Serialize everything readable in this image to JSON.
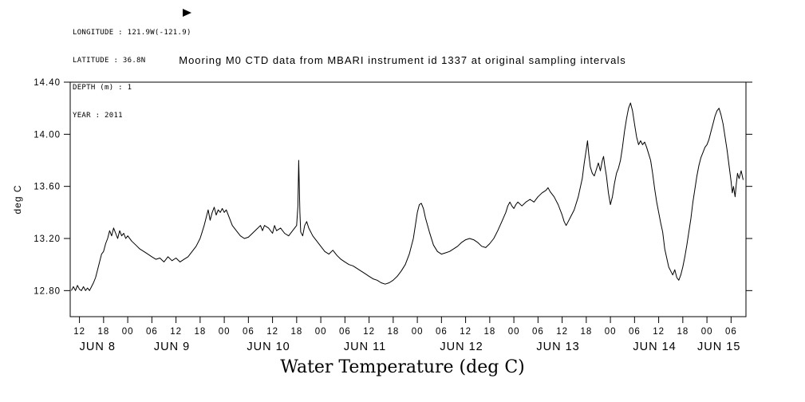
{
  "metadata": {
    "longitude": "LONGITUDE : 121.9W(-121.9)",
    "latitude": "LATITUDE : 36.8N",
    "depth": "DEPTH (m) : 1",
    "year": "YEAR : 2011"
  },
  "icons": {
    "cursor": "right-pointing-black-arrow"
  },
  "colors": {
    "foreground": "#000000",
    "background": "#ffffff"
  },
  "chart_data": {
    "type": "line",
    "title": "Mooring M0 CTD data from MBARI instrument id 1337 at original sampling intervals",
    "ylabel": "deg C",
    "xlabel": "Water Temperature (deg C)",
    "grid": false,
    "legend": "none",
    "line_color": "#000000",
    "background": "#ffffff",
    "ylim": [
      12.6,
      14.4
    ],
    "yticks": [
      {
        "value": 12.8,
        "label": "12.80"
      },
      {
        "value": 13.2,
        "label": "13.20"
      },
      {
        "value": 13.6,
        "label": "13.60"
      },
      {
        "value": 14.0,
        "label": "14.00"
      },
      {
        "value": 14.4,
        "label": "14.40"
      }
    ],
    "x_unit": "hours since JUN 8 2011 00:00",
    "xlim": [
      9.7,
      177.7
    ],
    "xticks": [
      {
        "hour": 12,
        "label": "12"
      },
      {
        "hour": 18,
        "label": "18"
      },
      {
        "hour": 24,
        "label": "00"
      },
      {
        "hour": 30,
        "label": "06"
      },
      {
        "hour": 36,
        "label": "12"
      },
      {
        "hour": 42,
        "label": "18"
      },
      {
        "hour": 48,
        "label": "00"
      },
      {
        "hour": 54,
        "label": "06"
      },
      {
        "hour": 60,
        "label": "12"
      },
      {
        "hour": 66,
        "label": "18"
      },
      {
        "hour": 72,
        "label": "00"
      },
      {
        "hour": 78,
        "label": "06"
      },
      {
        "hour": 84,
        "label": "12"
      },
      {
        "hour": 90,
        "label": "18"
      },
      {
        "hour": 96,
        "label": "00"
      },
      {
        "hour": 102,
        "label": "06"
      },
      {
        "hour": 108,
        "label": "12"
      },
      {
        "hour": 114,
        "label": "18"
      },
      {
        "hour": 120,
        "label": "00"
      },
      {
        "hour": 126,
        "label": "06"
      },
      {
        "hour": 132,
        "label": "12"
      },
      {
        "hour": 138,
        "label": "18"
      },
      {
        "hour": 144,
        "label": "00"
      },
      {
        "hour": 150,
        "label": "06"
      },
      {
        "hour": 156,
        "label": "12"
      },
      {
        "hour": 162,
        "label": "18"
      },
      {
        "hour": 168,
        "label": "00"
      },
      {
        "hour": 174,
        "label": "06"
      }
    ],
    "day_labels": [
      {
        "hour": 16.5,
        "label": "JUN 8"
      },
      {
        "hour": 35,
        "label": "JUN 9"
      },
      {
        "hour": 59,
        "label": "JUN 10"
      },
      {
        "hour": 83,
        "label": "JUN 11"
      },
      {
        "hour": 107,
        "label": "JUN 12"
      },
      {
        "hour": 131,
        "label": "JUN 13"
      },
      {
        "hour": 155,
        "label": "JUN 14"
      },
      {
        "hour": 171,
        "label": "JUN 15"
      }
    ],
    "series": [
      {
        "name": "water_temperature_deg_c",
        "t": [
          10,
          10.5,
          11,
          11.5,
          12,
          12.5,
          13,
          13.5,
          14,
          14.5,
          15,
          15.5,
          16,
          16.5,
          17,
          17.5,
          18,
          18.5,
          19,
          19.5,
          20,
          20.5,
          21,
          21.5,
          22,
          22.5,
          23,
          23.5,
          24,
          25,
          26,
          27,
          28,
          29,
          30,
          31,
          32,
          33,
          34,
          35,
          36,
          37,
          38,
          39,
          40,
          41,
          42,
          42.5,
          43,
          43.5,
          44,
          44.5,
          45,
          45.5,
          46,
          46.5,
          47,
          47.5,
          48,
          48.5,
          49,
          50,
          51,
          52,
          53,
          54,
          55,
          56,
          57,
          57.5,
          58,
          59,
          60,
          60.5,
          61,
          62,
          63,
          64,
          65,
          66,
          66.3,
          66.5,
          66.8,
          67,
          67.5,
          68,
          68.5,
          69,
          70,
          71,
          72,
          73,
          74,
          75,
          76,
          77,
          78,
          79,
          80,
          81,
          82,
          83,
          84,
          85,
          86,
          87,
          88,
          89,
          90,
          91,
          92,
          93,
          94,
          95,
          95.5,
          96,
          96.5,
          97,
          97.5,
          98,
          99,
          100,
          101,
          102,
          103,
          104,
          105,
          106,
          107,
          108,
          109,
          110,
          111,
          112,
          113,
          114,
          115,
          116,
          117,
          118,
          118.5,
          119,
          119.5,
          120,
          120.5,
          121,
          122,
          123,
          124,
          125,
          126,
          127,
          128,
          128.5,
          129,
          130,
          131,
          132,
          132.5,
          133,
          133.5,
          134,
          135,
          136,
          137,
          137.5,
          138,
          138.3,
          138.6,
          139,
          139.5,
          140,
          140.5,
          141,
          141.5,
          142,
          142.3,
          142.6,
          143,
          143.5,
          144,
          144.5,
          145,
          145.5,
          146,
          146.5,
          147,
          147.5,
          148,
          148.5,
          149,
          149.5,
          150,
          150.5,
          151,
          151.5,
          152,
          152.5,
          153,
          153.5,
          154,
          154.5,
          155,
          155.5,
          156,
          156.5,
          157,
          157.5,
          158,
          158.5,
          159,
          159.5,
          160,
          160.5,
          161,
          161.5,
          162,
          162.5,
          163,
          163.5,
          164,
          164.5,
          165,
          165.5,
          166,
          166.5,
          167,
          167.5,
          168,
          168.5,
          169,
          169.5,
          170,
          170.5,
          171,
          171.5,
          172,
          172.5,
          173,
          173.5,
          174,
          174.3,
          174.6,
          175,
          175.3,
          175.6,
          176,
          176.5,
          177
        ],
        "v": [
          12.8,
          12.83,
          12.8,
          12.84,
          12.81,
          12.8,
          12.83,
          12.8,
          12.82,
          12.8,
          12.83,
          12.86,
          12.9,
          12.96,
          13.02,
          13.08,
          13.1,
          13.16,
          13.2,
          13.26,
          13.22,
          13.28,
          13.24,
          13.2,
          13.26,
          13.22,
          13.24,
          13.2,
          13.22,
          13.18,
          13.15,
          13.12,
          13.1,
          13.08,
          13.06,
          13.04,
          13.05,
          13.02,
          13.06,
          13.03,
          13.05,
          13.02,
          13.04,
          13.06,
          13.1,
          13.14,
          13.2,
          13.25,
          13.3,
          13.36,
          13.42,
          13.34,
          13.4,
          13.44,
          13.38,
          13.42,
          13.4,
          13.43,
          13.4,
          13.42,
          13.38,
          13.3,
          13.26,
          13.22,
          13.2,
          13.21,
          13.24,
          13.27,
          13.3,
          13.26,
          13.3,
          13.28,
          13.24,
          13.3,
          13.26,
          13.28,
          13.24,
          13.22,
          13.26,
          13.3,
          13.45,
          13.8,
          13.4,
          13.25,
          13.22,
          13.3,
          13.33,
          13.28,
          13.22,
          13.18,
          13.14,
          13.1,
          13.08,
          13.11,
          13.07,
          13.04,
          13.02,
          13.0,
          12.99,
          12.97,
          12.95,
          12.93,
          12.91,
          12.89,
          12.88,
          12.86,
          12.85,
          12.86,
          12.88,
          12.91,
          12.95,
          13.0,
          13.08,
          13.2,
          13.3,
          13.4,
          13.46,
          13.47,
          13.43,
          13.36,
          13.25,
          13.15,
          13.1,
          13.08,
          13.09,
          13.1,
          13.12,
          13.14,
          13.17,
          13.19,
          13.2,
          13.19,
          13.17,
          13.14,
          13.13,
          13.16,
          13.2,
          13.26,
          13.33,
          13.4,
          13.45,
          13.48,
          13.45,
          13.43,
          13.46,
          13.48,
          13.45,
          13.48,
          13.5,
          13.48,
          13.52,
          13.55,
          13.57,
          13.59,
          13.56,
          13.52,
          13.46,
          13.38,
          13.33,
          13.3,
          13.33,
          13.36,
          13.42,
          13.52,
          13.66,
          13.78,
          13.88,
          13.95,
          13.85,
          13.75,
          13.7,
          13.68,
          13.73,
          13.78,
          13.72,
          13.8,
          13.83,
          13.76,
          13.68,
          13.55,
          13.46,
          13.52,
          13.62,
          13.7,
          13.74,
          13.8,
          13.9,
          14.02,
          14.12,
          14.2,
          14.24,
          14.18,
          14.08,
          13.98,
          13.92,
          13.95,
          13.92,
          13.94,
          13.9,
          13.85,
          13.8,
          13.7,
          13.58,
          13.48,
          13.4,
          13.32,
          13.25,
          13.12,
          13.05,
          12.98,
          12.95,
          12.92,
          12.96,
          12.9,
          12.88,
          12.92,
          12.98,
          13.06,
          13.15,
          13.25,
          13.35,
          13.48,
          13.58,
          13.68,
          13.76,
          13.82,
          13.86,
          13.9,
          13.92,
          13.96,
          14.02,
          14.08,
          14.14,
          14.18,
          14.2,
          14.15,
          14.08,
          13.98,
          13.88,
          13.76,
          13.64,
          13.55,
          13.6,
          13.52,
          13.62,
          13.7,
          13.66,
          13.72,
          13.65
        ]
      }
    ]
  }
}
